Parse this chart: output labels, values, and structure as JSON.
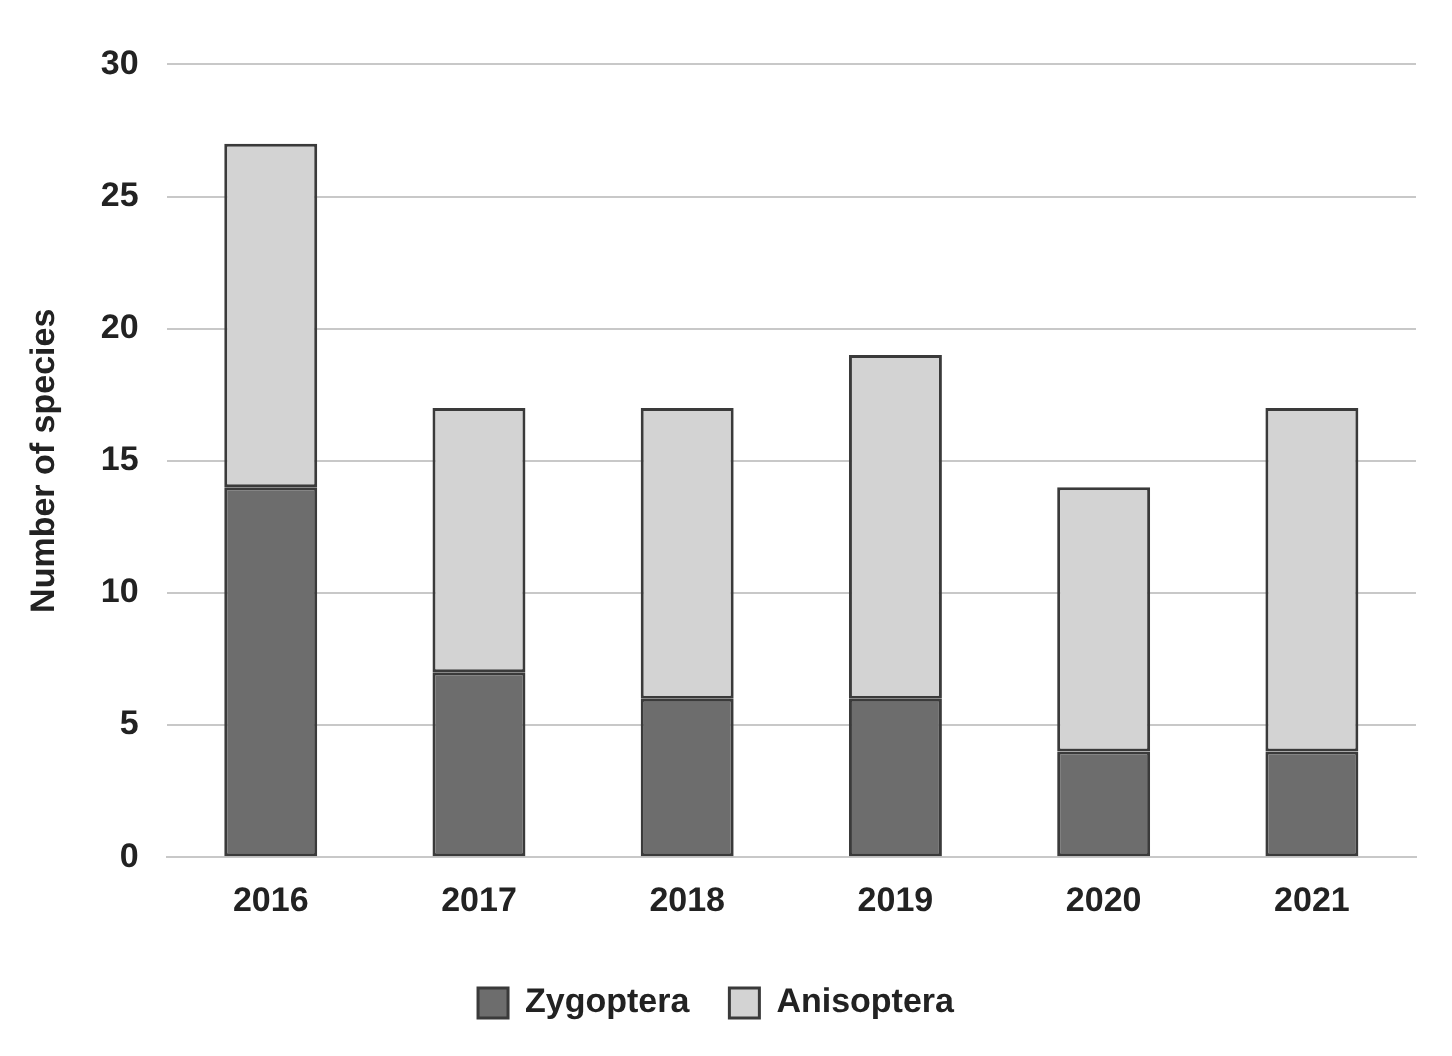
{
  "chart_data": {
    "type": "bar",
    "stacked": true,
    "categories": [
      "2016",
      "2017",
      "2018",
      "2019",
      "2020",
      "2021"
    ],
    "series": [
      {
        "name": "Zygoptera",
        "color": "#6d6d6d",
        "values": [
          14,
          7,
          6,
          6,
          4,
          4
        ]
      },
      {
        "name": "Anisoptera",
        "color": "#d3d3d3",
        "values": [
          13,
          10,
          11,
          13,
          10,
          13
        ]
      }
    ],
    "ylabel": "Number of species",
    "ylim": [
      0,
      30
    ],
    "yticks": [
      0,
      5,
      10,
      15,
      20,
      25,
      30
    ],
    "grid": "y",
    "legend": "bottom"
  }
}
